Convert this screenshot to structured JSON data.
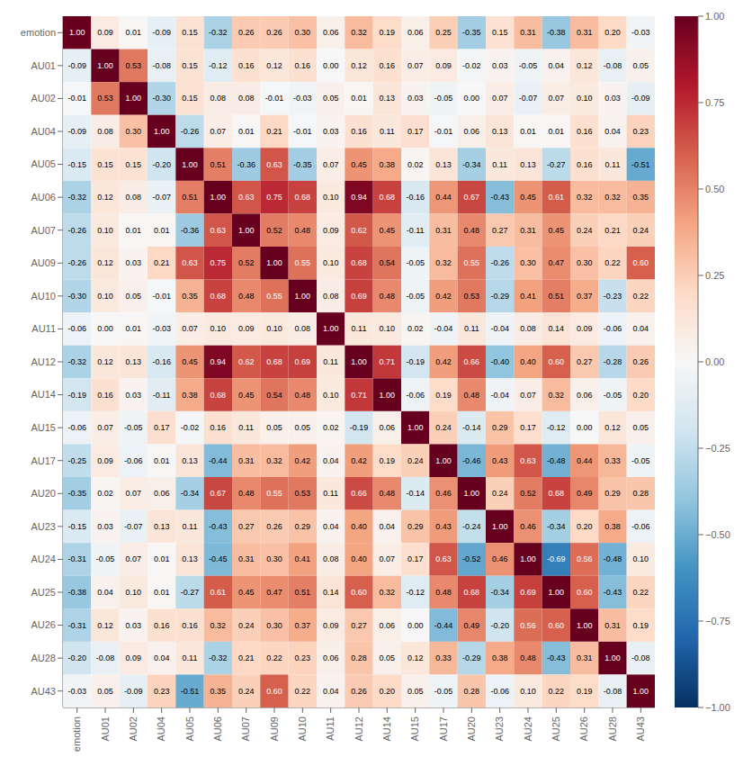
{
  "chart_data": {
    "type": "heatmap",
    "categories": [
      "emotion",
      "AU01",
      "AU02",
      "AU04",
      "AU05",
      "AU06",
      "AU07",
      "AU09",
      "AU10",
      "AU11",
      "AU12",
      "AU14",
      "AU15",
      "AU17",
      "AU20",
      "AU23",
      "AU24",
      "AU25",
      "AU26",
      "AU28",
      "AU43"
    ],
    "values": [
      [
        1.0,
        0.09,
        0.01,
        -0.09,
        0.15,
        -0.32,
        0.26,
        0.26,
        0.3,
        0.06,
        0.32,
        0.19,
        0.06,
        0.25,
        -0.35,
        0.15,
        0.31,
        -0.38,
        0.31,
        0.2,
        -0.03
      ],
      [
        -0.09,
        1.0,
        0.53,
        -0.08,
        0.15,
        -0.12,
        0.16,
        0.12,
        0.16,
        0.0,
        0.12,
        0.16,
        0.07,
        0.09,
        -0.02,
        0.03,
        -0.05,
        0.04,
        0.12,
        -0.08,
        0.05
      ],
      [
        -0.01,
        0.53,
        1.0,
        -0.3,
        0.15,
        0.08,
        0.08,
        -0.01,
        -0.03,
        0.05,
        0.01,
        0.13,
        0.03,
        -0.05,
        0.0,
        0.07,
        -0.07,
        0.07,
        0.1,
        0.03,
        -0.09
      ],
      [
        -0.09,
        0.08,
        0.3,
        1.0,
        -0.26,
        0.07,
        0.01,
        0.21,
        -0.01,
        0.03,
        0.16,
        0.11,
        0.17,
        -0.01,
        0.06,
        0.13,
        0.01,
        0.01,
        0.16,
        0.04,
        0.23
      ],
      [
        -0.15,
        0.15,
        0.15,
        -0.2,
        1.0,
        0.51,
        -0.36,
        0.63,
        -0.35,
        0.07,
        0.45,
        0.38,
        0.02,
        0.13,
        -0.34,
        0.11,
        0.13,
        -0.27,
        0.16,
        0.11,
        -0.51
      ],
      [
        -0.32,
        0.12,
        0.08,
        -0.07,
        0.51,
        1.0,
        0.63,
        0.75,
        0.68,
        0.1,
        0.94,
        0.68,
        -0.16,
        0.44,
        0.67,
        -0.43,
        0.45,
        0.61,
        0.32,
        0.32,
        0.35
      ],
      [
        -0.26,
        0.1,
        0.01,
        0.01,
        -0.36,
        0.63,
        1.0,
        0.52,
        0.48,
        0.09,
        0.62,
        0.45,
        -0.11,
        0.31,
        0.48,
        0.27,
        0.31,
        0.45,
        0.24,
        0.21,
        0.24
      ],
      [
        -0.26,
        0.12,
        0.03,
        0.21,
        0.63,
        0.75,
        0.52,
        1.0,
        0.55,
        0.1,
        0.68,
        0.54,
        -0.05,
        0.32,
        0.55,
        -0.26,
        0.3,
        0.47,
        0.3,
        0.22,
        0.6
      ],
      [
        -0.3,
        0.1,
        0.05,
        -0.01,
        0.35,
        0.68,
        0.48,
        0.55,
        1.0,
        0.08,
        0.69,
        0.48,
        -0.05,
        0.42,
        0.53,
        -0.29,
        0.41,
        0.51,
        0.37,
        -0.23,
        0.22
      ],
      [
        -0.06,
        0.0,
        0.01,
        -0.03,
        0.07,
        0.1,
        0.09,
        0.1,
        0.08,
        1.0,
        0.11,
        0.1,
        0.02,
        -0.04,
        0.11,
        -0.04,
        0.08,
        0.14,
        0.09,
        -0.06,
        0.04
      ],
      [
        -0.32,
        0.12,
        0.13,
        -0.16,
        0.45,
        0.94,
        0.62,
        0.68,
        0.69,
        0.11,
        1.0,
        0.71,
        -0.19,
        0.42,
        0.66,
        -0.4,
        0.4,
        0.6,
        0.27,
        -0.28,
        0.26
      ],
      [
        -0.19,
        0.16,
        0.03,
        -0.11,
        0.38,
        0.68,
        0.45,
        0.54,
        0.48,
        0.1,
        0.71,
        1.0,
        -0.06,
        0.19,
        0.48,
        -0.04,
        0.07,
        0.32,
        0.06,
        -0.05,
        0.2
      ],
      [
        -0.06,
        0.07,
        -0.05,
        0.17,
        -0.02,
        0.16,
        0.11,
        0.05,
        0.05,
        0.02,
        -0.19,
        0.06,
        1.0,
        0.24,
        -0.14,
        0.29,
        0.17,
        -0.12,
        0.0,
        0.12,
        0.05
      ],
      [
        -0.25,
        0.09,
        -0.06,
        0.01,
        0.13,
        -0.44,
        0.31,
        0.32,
        0.42,
        0.04,
        0.42,
        0.19,
        0.24,
        1.0,
        -0.46,
        0.43,
        0.63,
        -0.48,
        0.44,
        0.33,
        -0.05
      ],
      [
        -0.35,
        0.02,
        0.07,
        0.06,
        -0.34,
        0.67,
        0.48,
        0.55,
        0.53,
        0.11,
        0.66,
        0.48,
        -0.14,
        0.46,
        1.0,
        0.24,
        0.52,
        0.68,
        0.49,
        0.29,
        0.28
      ],
      [
        -0.15,
        0.03,
        -0.07,
        0.13,
        0.11,
        -0.43,
        0.27,
        0.26,
        0.29,
        0.04,
        0.4,
        0.04,
        0.29,
        0.43,
        -0.24,
        1.0,
        0.46,
        -0.34,
        0.2,
        0.38,
        -0.06
      ],
      [
        -0.31,
        -0.05,
        0.07,
        0.01,
        0.13,
        -0.45,
        0.31,
        0.3,
        0.41,
        0.08,
        0.4,
        0.07,
        0.17,
        0.63,
        -0.52,
        0.46,
        1.0,
        -0.69,
        0.56,
        -0.48,
        0.1
      ],
      [
        -0.38,
        0.04,
        0.1,
        0.01,
        -0.27,
        0.61,
        0.45,
        0.47,
        0.51,
        0.14,
        0.6,
        0.32,
        -0.12,
        0.48,
        0.68,
        -0.34,
        0.69,
        1.0,
        0.6,
        -0.43,
        0.22
      ],
      [
        -0.31,
        0.12,
        0.03,
        0.16,
        0.16,
        0.32,
        0.24,
        0.3,
        0.37,
        0.09,
        0.27,
        0.06,
        0.0,
        -0.44,
        0.49,
        -0.2,
        0.56,
        0.6,
        1.0,
        0.31,
        0.19
      ],
      [
        -0.2,
        -0.08,
        0.09,
        0.04,
        0.11,
        -0.32,
        0.21,
        0.22,
        0.23,
        0.06,
        0.28,
        0.05,
        0.12,
        0.33,
        -0.29,
        0.38,
        0.48,
        -0.43,
        0.31,
        1.0,
        -0.08
      ],
      [
        -0.03,
        0.05,
        -0.09,
        0.23,
        -0.51,
        0.35,
        0.24,
        0.6,
        0.22,
        0.04,
        0.26,
        0.2,
        0.05,
        -0.05,
        0.28,
        -0.06,
        0.1,
        0.22,
        0.19,
        -0.08,
        1.0
      ]
    ],
    "value_labels": [
      [
        "1.00",
        "0.09",
        "0.01",
        "-0.09",
        "0.15",
        "-0.32",
        "0.26",
        "0.26",
        "0.30",
        "0.06",
        "0.32",
        "0.19",
        "0.06",
        "0.25",
        "-0.35",
        "0.15",
        "0.31",
        "-0.38",
        "0.31",
        "0.20",
        "-0.03"
      ],
      [
        "-0.09",
        "1.00",
        "0.53",
        "-0.08",
        "0.15",
        "-0.12",
        "0.16",
        "0.12",
        "0.16",
        "0.00",
        "0.12",
        "0.16",
        "0.07",
        "0.09",
        "-0.02",
        "0.03",
        "-0.05",
        "0.04",
        "0.12",
        "-0.08",
        "0.05"
      ],
      [
        "-0.01",
        "0.53",
        "1.00",
        "-0.30",
        "0.15",
        "0.08",
        "0.08",
        "-0.01",
        "-0.03",
        "0.05",
        "0.01",
        "0.13",
        "0.03",
        "-0.05",
        "0.00",
        "0.07",
        "-0.07",
        "0.07",
        "0.10",
        "0.03",
        "-0.09"
      ],
      [
        "-0.09",
        "0.08",
        "0.30",
        "1.00",
        "-0.26",
        "0.07",
        "0.01",
        "0.21",
        "-0.01",
        "0.03",
        "0.16",
        "0.11",
        "0.17",
        "-0.01",
        "0.06",
        "0.13",
        "0.01",
        "0.01",
        "0.16",
        "0.04",
        "0.23"
      ],
      [
        "-0.15",
        "0.15",
        "0.15",
        "-0.20",
        "1.00",
        "0.51",
        "-0.36",
        "0.63",
        "-0.35",
        "0.07",
        "0.45",
        "0.38",
        "0.02",
        "0.13",
        "-0.34",
        "0.11",
        "0.13",
        "-0.27",
        "0.16",
        "0.11",
        "-0.51"
      ],
      [
        "-0.32",
        "0.12",
        "0.08",
        "-0.07",
        "0.51",
        "1.00",
        "0.63",
        "0.75",
        "0.68",
        "0.10",
        "0.94",
        "0.68",
        "-0.16",
        "0.44",
        "0.67",
        "-0.43",
        "0.45",
        "0.61",
        "0.32",
        "0.32",
        "0.35"
      ],
      [
        "-0.26",
        "0.10",
        "0.01",
        "0.01",
        "-0.36",
        "0.63",
        "1.00",
        "0.52",
        "0.48",
        "0.09",
        "0.62",
        "0.45",
        "-0.11",
        "0.31",
        "0.48",
        "0.27",
        "0.31",
        "0.45",
        "0.24",
        "0.21",
        "0.24"
      ],
      [
        "-0.26",
        "0.12",
        "0.03",
        "0.21",
        "0.63",
        "0.75",
        "0.52",
        "1.00",
        "0.55",
        "0.10",
        "0.68",
        "0.54",
        "-0.05",
        "0.32",
        "0.55",
        "-0.26",
        "0.30",
        "0.47",
        "0.30",
        "0.22",
        "0.60"
      ],
      [
        "-0.30",
        "0.10",
        "0.05",
        "-0.01",
        "0.35",
        "0.68",
        "0.48",
        "0.55",
        "1.00",
        "0.08",
        "0.69",
        "0.48",
        "-0.05",
        "0.42",
        "0.53",
        "-0.29",
        "0.41",
        "0.51",
        "0.37",
        "-0.23",
        "0.22"
      ],
      [
        "-0.06",
        "0.00",
        "0.01",
        "-0.03",
        "0.07",
        "0.10",
        "0.09",
        "0.10",
        "0.08",
        "1.00",
        "0.11",
        "0.10",
        "0.02",
        "-0.04",
        "0.11",
        "-0.04",
        "0.08",
        "0.14",
        "0.09",
        "-0.06",
        "0.04"
      ],
      [
        "-0.32",
        "0.12",
        "0.13",
        "-0.16",
        "0.45",
        "0.94",
        "0.62",
        "0.68",
        "0.69",
        "0.11",
        "1.00",
        "0.71",
        "-0.19",
        "0.42",
        "0.66",
        "-0.40",
        "0.40",
        "0.60",
        "0.27",
        "-0.28",
        "0.26"
      ],
      [
        "-0.19",
        "0.16",
        "0.03",
        "-0.11",
        "0.38",
        "0.68",
        "0.45",
        "0.54",
        "0.48",
        "0.10",
        "0.71",
        "1.00",
        "-0.06",
        "0.19",
        "0.48",
        "-0.04",
        "0.07",
        "0.32",
        "0.06",
        "-0.05",
        "0.20"
      ],
      [
        "-0.06",
        "0.07",
        "-0.05",
        "0.17",
        "-0.02",
        "0.16",
        "0.11",
        "0.05",
        "0.05",
        "0.02",
        "-0.19",
        "0.06",
        "1.00",
        "0.24",
        "-0.14",
        "0.29",
        "0.17",
        "-0.12",
        "0.00",
        "0.12",
        "0.05"
      ],
      [
        "-0.25",
        "0.09",
        "-0.06",
        "0.01",
        "0.13",
        "-0.44",
        "0.31",
        "0.32",
        "0.42",
        "0.04",
        "0.42",
        "0.19",
        "0.24",
        "1.00",
        "-0.46",
        "0.43",
        "0.63",
        "-0.48",
        "0.44",
        "0.33",
        "-0.05"
      ],
      [
        "-0.35",
        "0.02",
        "0.07",
        "0.06",
        "-0.34",
        "0.67",
        "0.48",
        "0.55",
        "0.53",
        "0.11",
        "0.66",
        "0.48",
        "-0.14",
        "0.46",
        "1.00",
        "0.24",
        "0.52",
        "0.68",
        "0.49",
        "0.29",
        "0.28"
      ],
      [
        "-0.15",
        "0.03",
        "-0.07",
        "0.13",
        "0.11",
        "-0.43",
        "0.27",
        "0.26",
        "0.29",
        "0.04",
        "0.40",
        "0.04",
        "0.29",
        "0.43",
        "-0.24",
        "1.00",
        "0.46",
        "-0.34",
        "0.20",
        "0.38",
        "-0.06"
      ],
      [
        "-0.31",
        "-0.05",
        "0.07",
        "0.01",
        "0.13",
        "-0.45",
        "0.31",
        "0.30",
        "0.41",
        "0.08",
        "0.40",
        "0.07",
        "0.17",
        "0.63",
        "-0.52",
        "0.46",
        "1.00",
        "-0.69",
        "0.56",
        "-0.48",
        "0.10"
      ],
      [
        "-0.38",
        "0.04",
        "0.10",
        "0.01",
        "-0.27",
        "0.61",
        "0.45",
        "0.47",
        "0.51",
        "0.14",
        "0.60",
        "0.32",
        "-0.12",
        "0.48",
        "0.68",
        "-0.34",
        "0.69",
        "1.00",
        "0.60",
        "-0.43",
        "0.22"
      ],
      [
        "-0.31",
        "0.12",
        "0.03",
        "0.16",
        "0.16",
        "0.32",
        "0.24",
        "0.30",
        "0.37",
        "0.09",
        "0.27",
        "0.06",
        "0.00",
        "-0.44",
        "0.49",
        "-0.20",
        "0.56",
        "0.60",
        "1.00",
        "0.31",
        "0.19"
      ],
      [
        "-0.20",
        "-0.08",
        "0.09",
        "0.04",
        "0.11",
        "-0.32",
        "0.21",
        "0.22",
        "0.23",
        "0.06",
        "0.28",
        "0.05",
        "0.12",
        "0.33",
        "-0.29",
        "0.38",
        "0.48",
        "-0.43",
        "0.31",
        "1.00",
        "-0.08"
      ],
      [
        "-0.03",
        "0.05",
        "-0.09",
        "0.23",
        "-0.51",
        "0.35",
        "0.24",
        "0.60",
        "0.22",
        "0.04",
        "0.26",
        "0.20",
        "0.05",
        "-0.05",
        "0.28",
        "-0.06",
        "0.10",
        "0.22",
        "0.19",
        "-0.08",
        "1.00"
      ]
    ],
    "data_labels": true,
    "zlim": [
      -1.0,
      1.0
    ],
    "zticks": [
      {
        "value": -1.0,
        "label": "−1.00"
      },
      {
        "value": -0.75,
        "label": "−0.75"
      },
      {
        "value": -0.5,
        "label": "−0.50"
      },
      {
        "value": -0.25,
        "label": "−0.25"
      },
      {
        "value": 0.0,
        "label": "0.00"
      },
      {
        "value": 0.25,
        "label": "0.25"
      },
      {
        "value": 0.5,
        "label": "0.50"
      },
      {
        "value": 0.75,
        "label": "0.75"
      },
      {
        "value": 1.0,
        "label": "1.00"
      }
    ],
    "colors": [
      "#053061",
      "#2166ac",
      "#4393c3",
      "#92c5de",
      "#d1e5f0",
      "#f7f7f7",
      "#fddbc7",
      "#f4a582",
      "#d6604d",
      "#b2182b",
      "#67001f"
    ]
  }
}
